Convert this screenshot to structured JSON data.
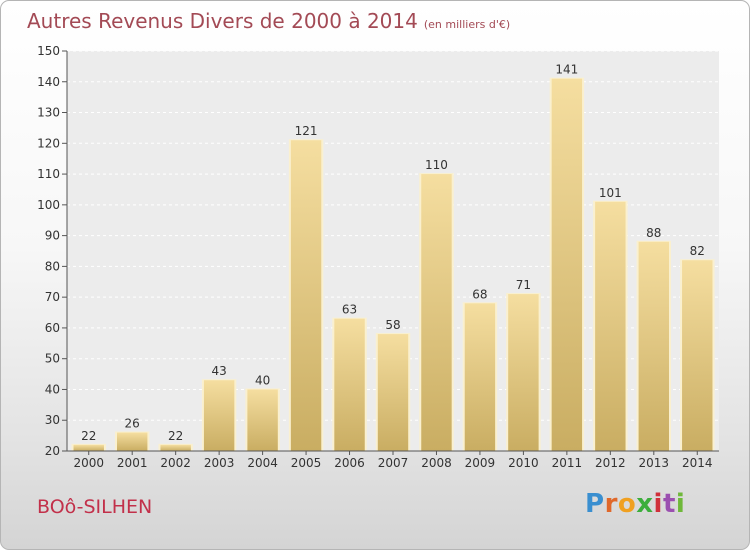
{
  "title": "Autres Revenus Divers de 2000 à 2014",
  "unit": "(en milliers d'€)",
  "place_name": "BOô-SILHEN",
  "logo": {
    "letters": [
      "P",
      "r",
      "o",
      "x",
      "i",
      "t",
      "i"
    ],
    "colors": [
      "#3a8fd0",
      "#e0682a",
      "#f0a020",
      "#3cae3c",
      "#d0303a",
      "#9b4fb0",
      "#6fb83a"
    ]
  },
  "colors": {
    "bar_light": "#f5dea0",
    "bar_dark": "#c9ad62",
    "title": "#a34a55",
    "place": "#c2304a"
  },
  "chart_data": {
    "type": "bar",
    "title": "Autres Revenus Divers de 2000 à 2014",
    "subtitle": "(en milliers d'€)",
    "xlabel": "",
    "ylabel": "",
    "categories": [
      "2000",
      "2001",
      "2002",
      "2003",
      "2004",
      "2005",
      "2006",
      "2007",
      "2008",
      "2009",
      "2010",
      "2011",
      "2012",
      "2013",
      "2014"
    ],
    "values": [
      22,
      26,
      22,
      43,
      40,
      121,
      63,
      58,
      110,
      68,
      71,
      141,
      101,
      88,
      82
    ],
    "ylim": [
      20,
      150
    ],
    "yticks": [
      20,
      30,
      40,
      50,
      60,
      70,
      80,
      90,
      100,
      110,
      120,
      130,
      140,
      150
    ],
    "grid": true
  }
}
